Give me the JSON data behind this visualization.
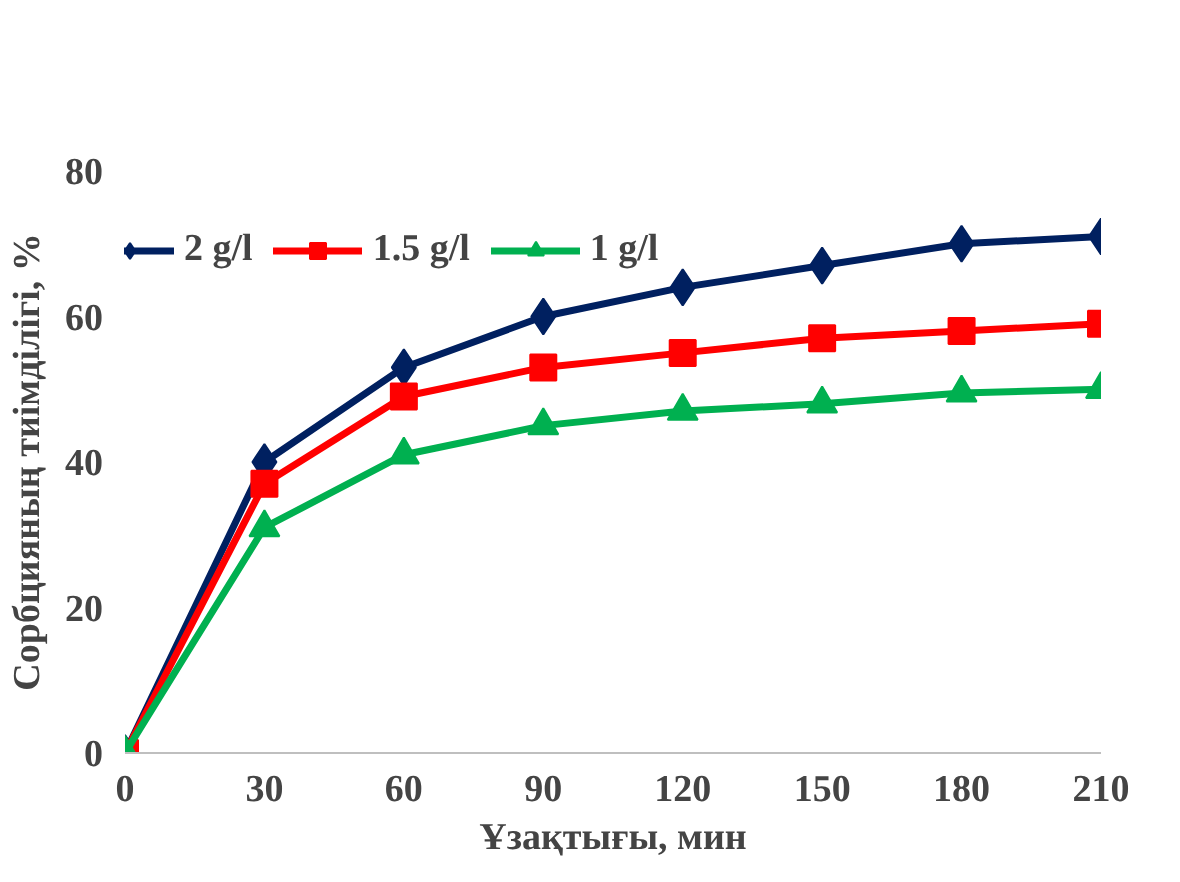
{
  "chart_data": {
    "type": "line",
    "xlabel": "Ұзақтығы, мин",
    "ylabel": "Сорбцияның тиімділігі, %",
    "x": [
      0,
      30,
      60,
      90,
      120,
      150,
      180,
      210
    ],
    "series": [
      {
        "name": "2 g/l",
        "color": "#002060",
        "marker": "diamond",
        "values": [
          0,
          40,
          53,
          60,
          64,
          67,
          70,
          71
        ]
      },
      {
        "name": "1.5 g/l",
        "color": "#ff0000",
        "marker": "square",
        "values": [
          0,
          37,
          49,
          53,
          55,
          57,
          58,
          59
        ]
      },
      {
        "name": "1 g/l",
        "color": "#00b050",
        "marker": "triangle",
        "values": [
          0,
          31,
          41,
          45,
          47,
          48,
          49.5,
          50
        ]
      }
    ],
    "xlim": [
      0,
      210
    ],
    "xticks": [
      0,
      30,
      60,
      90,
      120,
      150,
      180,
      210
    ],
    "ylim": [
      0,
      80
    ],
    "yticks": [
      0,
      20,
      40,
      60,
      80
    ],
    "grid": false,
    "legend": "top",
    "line_style": "solid"
  }
}
